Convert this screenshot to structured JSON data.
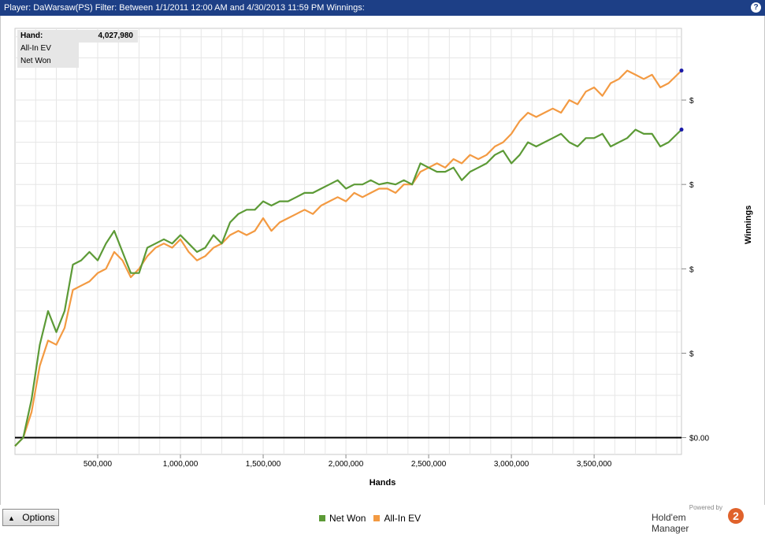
{
  "window": {
    "title": "Player: DaWarsaw(PS) Filter: Between 1/1/2011 12:00 AM and 4/30/2013 11:59 PM  Winnings:",
    "help_icon": "help-icon",
    "help_label": "?"
  },
  "info_box": {
    "hand_label": "Hand:",
    "hand_value": "4,027,980",
    "row1_label": "All-In EV",
    "row2_label": "Net Won"
  },
  "controls": {
    "options_label": "Options",
    "options_icon": "triangle-up-icon"
  },
  "branding": {
    "powered_by": "Powered by",
    "product": "Hold'em Manager",
    "logo_text": "2"
  },
  "colors": {
    "net_won": "#5c9a36",
    "all_in_ev": "#f39a42",
    "title_bar": "#1d3f86",
    "zero_line": "#000000",
    "end_marker": "#1a1aa8"
  },
  "chart_data": {
    "type": "line",
    "title": "",
    "xlabel": "Hands",
    "ylabel": "Winnings",
    "xlim": [
      0,
      4027980
    ],
    "x_ticks": [
      500000,
      1000000,
      1500000,
      2000000,
      2500000,
      3000000,
      3500000
    ],
    "x_tick_labels": [
      "500,000",
      "1,000,000",
      "1,500,000",
      "2,000,000",
      "2,500,000",
      "3,000,000",
      "3,500,000"
    ],
    "ylim": [
      -0.2,
      4.85
    ],
    "y_ticks": [
      0,
      1,
      2,
      3,
      4
    ],
    "y_tick_labels": [
      "$0.00",
      "$",
      "$",
      "$",
      "$"
    ],
    "grid": true,
    "legend_position": "bottom-center",
    "series": [
      {
        "name": "Net Won",
        "x": [
          0,
          50000,
          100000,
          150000,
          200000,
          250000,
          300000,
          350000,
          400000,
          450000,
          500000,
          550000,
          600000,
          650000,
          700000,
          750000,
          800000,
          850000,
          900000,
          950000,
          1000000,
          1050000,
          1100000,
          1150000,
          1200000,
          1250000,
          1300000,
          1350000,
          1400000,
          1450000,
          1500000,
          1550000,
          1600000,
          1650000,
          1700000,
          1750000,
          1800000,
          1850000,
          1900000,
          1950000,
          2000000,
          2050000,
          2100000,
          2150000,
          2200000,
          2250000,
          2300000,
          2350000,
          2400000,
          2450000,
          2500000,
          2550000,
          2600000,
          2650000,
          2700000,
          2750000,
          2800000,
          2850000,
          2900000,
          2950000,
          3000000,
          3050000,
          3100000,
          3150000,
          3200000,
          3250000,
          3300000,
          3350000,
          3400000,
          3450000,
          3500000,
          3550000,
          3600000,
          3650000,
          3700000,
          3750000,
          3800000,
          3850000,
          3900000,
          3950000,
          4027980
        ],
        "values": [
          -0.1,
          0.0,
          0.45,
          1.1,
          1.5,
          1.25,
          1.5,
          2.05,
          2.1,
          2.2,
          2.1,
          2.3,
          2.45,
          2.2,
          1.95,
          1.95,
          2.25,
          2.3,
          2.35,
          2.3,
          2.4,
          2.3,
          2.2,
          2.25,
          2.4,
          2.3,
          2.55,
          2.65,
          2.7,
          2.7,
          2.8,
          2.75,
          2.8,
          2.8,
          2.85,
          2.9,
          2.9,
          2.95,
          3.0,
          3.05,
          2.95,
          3.0,
          3.0,
          3.05,
          3.0,
          3.02,
          3.0,
          3.05,
          3.0,
          3.25,
          3.2,
          3.15,
          3.15,
          3.2,
          3.05,
          3.15,
          3.2,
          3.25,
          3.35,
          3.4,
          3.25,
          3.35,
          3.5,
          3.45,
          3.5,
          3.55,
          3.6,
          3.5,
          3.45,
          3.55,
          3.55,
          3.6,
          3.45,
          3.5,
          3.55,
          3.65,
          3.6,
          3.6,
          3.45,
          3.5,
          3.65
        ]
      },
      {
        "name": "All-In EV",
        "x": [
          0,
          50000,
          100000,
          150000,
          200000,
          250000,
          300000,
          350000,
          400000,
          450000,
          500000,
          550000,
          600000,
          650000,
          700000,
          750000,
          800000,
          850000,
          900000,
          950000,
          1000000,
          1050000,
          1100000,
          1150000,
          1200000,
          1250000,
          1300000,
          1350000,
          1400000,
          1450000,
          1500000,
          1550000,
          1600000,
          1650000,
          1700000,
          1750000,
          1800000,
          1850000,
          1900000,
          1950000,
          2000000,
          2050000,
          2100000,
          2150000,
          2200000,
          2250000,
          2300000,
          2350000,
          2400000,
          2450000,
          2500000,
          2550000,
          2600000,
          2650000,
          2700000,
          2750000,
          2800000,
          2850000,
          2900000,
          2950000,
          3000000,
          3050000,
          3100000,
          3150000,
          3200000,
          3250000,
          3300000,
          3350000,
          3400000,
          3450000,
          3500000,
          3550000,
          3600000,
          3650000,
          3700000,
          3750000,
          3800000,
          3850000,
          3900000,
          3950000,
          4027980
        ],
        "values": [
          -0.1,
          0.0,
          0.3,
          0.85,
          1.15,
          1.1,
          1.3,
          1.75,
          1.8,
          1.85,
          1.95,
          2.0,
          2.2,
          2.1,
          1.9,
          2.0,
          2.15,
          2.25,
          2.3,
          2.25,
          2.35,
          2.2,
          2.1,
          2.15,
          2.25,
          2.3,
          2.4,
          2.45,
          2.4,
          2.45,
          2.6,
          2.45,
          2.55,
          2.6,
          2.65,
          2.7,
          2.65,
          2.75,
          2.8,
          2.85,
          2.8,
          2.9,
          2.85,
          2.9,
          2.95,
          2.95,
          2.9,
          3.0,
          3.0,
          3.15,
          3.2,
          3.25,
          3.2,
          3.3,
          3.25,
          3.35,
          3.3,
          3.35,
          3.45,
          3.5,
          3.6,
          3.75,
          3.85,
          3.8,
          3.85,
          3.9,
          3.85,
          4.0,
          3.95,
          4.1,
          4.15,
          4.05,
          4.2,
          4.25,
          4.35,
          4.3,
          4.25,
          4.3,
          4.15,
          4.2,
          4.35
        ]
      }
    ]
  }
}
